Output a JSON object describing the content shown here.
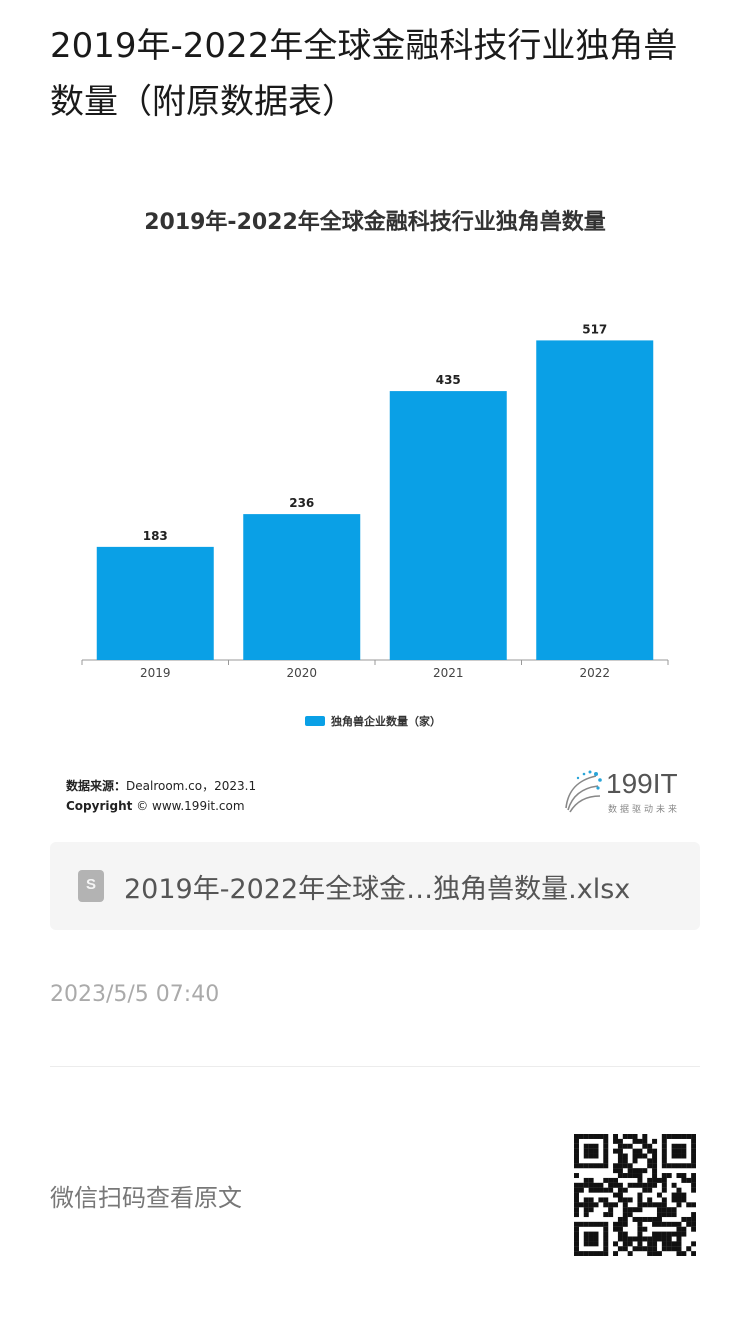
{
  "page": {
    "title": "2019年-2022年全球金融科技行业独角兽数量（附原数据表）"
  },
  "chart_data": {
    "type": "bar",
    "title": "2019年-2022年全球金融科技行业独角兽数量",
    "categories": [
      "2019",
      "2020",
      "2021",
      "2022"
    ],
    "series": [
      {
        "name": "独角兽企业数量（家）",
        "values": [
          183,
          236,
          435,
          517
        ]
      }
    ],
    "ylim": [
      0,
      550
    ],
    "grid": false,
    "legend": "bottom",
    "bar_color": "#0aa0e6"
  },
  "source": {
    "label": "数据来源：",
    "text": "Dealroom.co，2023.1",
    "copyright_label": "Copyright",
    "copyright_text": "© www.199it.com"
  },
  "logo": {
    "name": "199IT",
    "tagline": "数据驱动未来"
  },
  "attachment": {
    "icon": "spreadsheet-file-icon",
    "filename": "2019年-2022年全球金…独角兽数量.xlsx"
  },
  "meta": {
    "timestamp": "2023/5/5 07:40",
    "scan_text": "微信扫码查看原文"
  }
}
